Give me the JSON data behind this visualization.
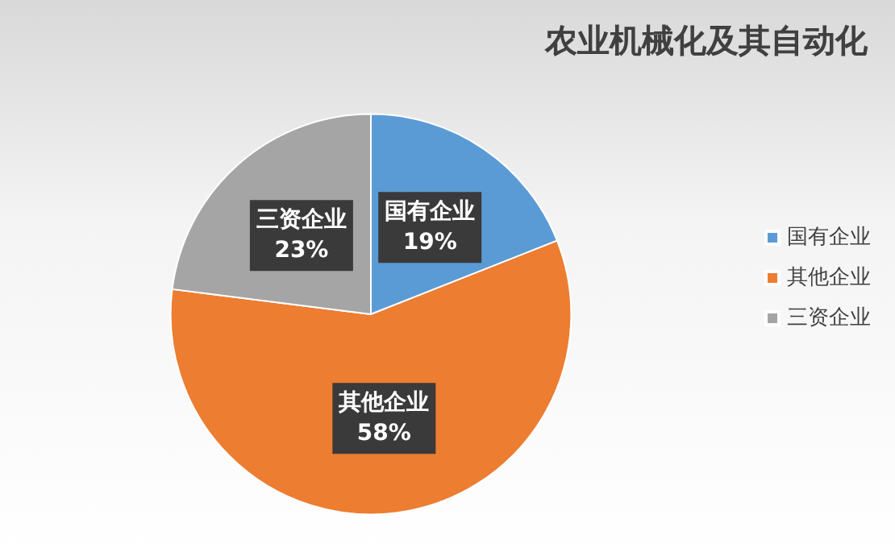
{
  "chart_data": {
    "type": "pie",
    "title": "农业机械化及其自动化",
    "categories": [
      "国有企业",
      "其他企业",
      "三资企业"
    ],
    "values": [
      19,
      58,
      23
    ],
    "colors": [
      "#5b9bd5",
      "#ed7d31",
      "#a5a5a5"
    ],
    "value_labels": [
      "19%",
      "58%",
      "23%"
    ],
    "legend": "right"
  }
}
